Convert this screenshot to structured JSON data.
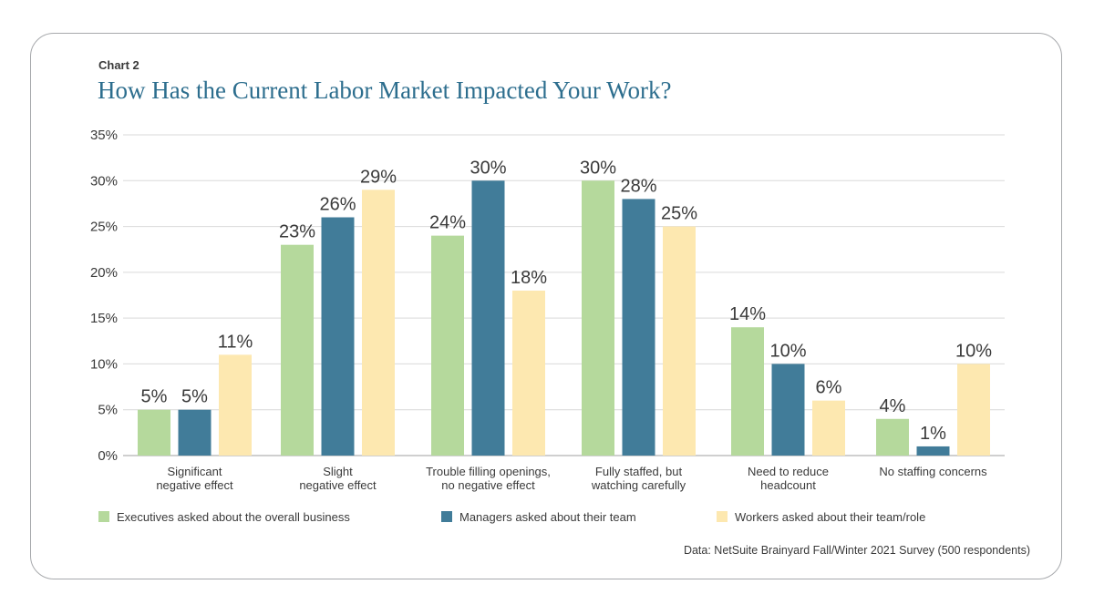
{
  "header": {
    "label": "Chart 2",
    "title": "How Has the Current Labor Market Impacted Your Work?"
  },
  "source": "Data: NetSuite Brainyard Fall/Winter 2021 Survey (500 respondents)",
  "chart_data": {
    "type": "bar",
    "title": "How Has the Current Labor Market Impacted Your Work?",
    "xlabel": "",
    "ylabel": "",
    "ylim": [
      0,
      35
    ],
    "yticks": [
      0,
      5,
      10,
      15,
      20,
      25,
      30,
      35
    ],
    "ytick_labels": [
      "0%",
      "5%",
      "10%",
      "15%",
      "20%",
      "25%",
      "30%",
      "35%"
    ],
    "grid": true,
    "legend_position": "bottom",
    "categories": [
      [
        "Significant",
        "negative effect"
      ],
      [
        "Slight",
        "negative effect"
      ],
      [
        "Trouble filling openings,",
        "no negative effect"
      ],
      [
        "Fully staffed, but",
        "watching carefully"
      ],
      [
        "Need to reduce",
        "headcount"
      ],
      [
        "No staffing concerns"
      ]
    ],
    "series": [
      {
        "name": "Executives asked about the overall business",
        "color": "#b5d99c",
        "values": [
          5,
          23,
          24,
          30,
          14,
          4
        ],
        "labels": [
          "5%",
          "23%",
          "24%",
          "30%",
          "14%",
          "4%"
        ]
      },
      {
        "name": "Managers asked about their team",
        "color": "#417c99",
        "values": [
          5,
          26,
          30,
          28,
          10,
          1
        ],
        "labels": [
          "5%",
          "26%",
          "30%",
          "28%",
          "10%",
          "1%"
        ]
      },
      {
        "name": "Workers asked about their team/role",
        "color": "#fde8b0",
        "values": [
          11,
          29,
          18,
          25,
          6,
          10
        ],
        "labels": [
          "11%",
          "29%",
          "18%",
          "25%",
          "6%",
          "10%"
        ]
      }
    ]
  },
  "colors": {
    "title": "#2d6e8e",
    "grid": "#d9d9d9",
    "axis": "#bfbfbf",
    "text": "#3a3a3a",
    "border": "#a7a9ac"
  }
}
